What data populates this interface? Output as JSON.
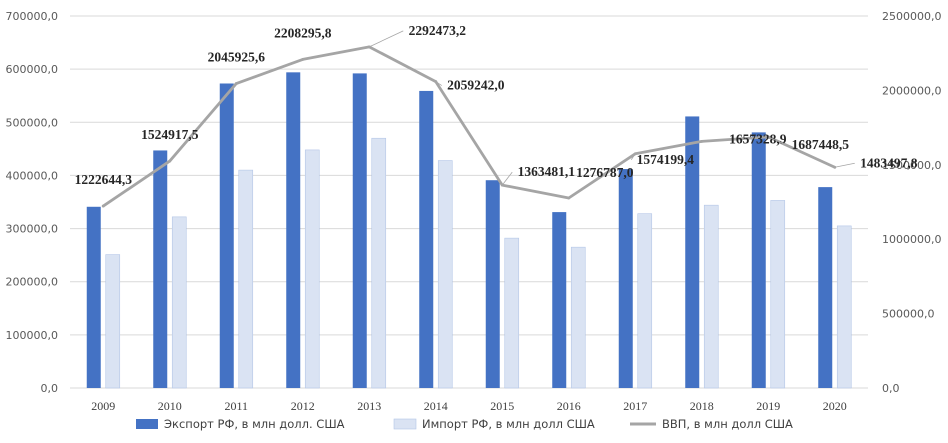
{
  "chart_data": {
    "type": "bar",
    "categories": [
      "2009",
      "2010",
      "2011",
      "2012",
      "2013",
      "2014",
      "2015",
      "2016",
      "2017",
      "2018",
      "2019",
      "2020"
    ],
    "series": [
      {
        "name": "Экспорт РФ, в млн  долл. США",
        "kind": "bar",
        "axis": "left",
        "color": "#4472c4",
        "values": [
          341000,
          447000,
          573000,
          594000,
          592000,
          559000,
          391000,
          331000,
          412000,
          511000,
          481000,
          378000
        ]
      },
      {
        "name": "Импорт РФ, в млн  долл США",
        "kind": "bar",
        "axis": "left",
        "color": "#dae3f3",
        "values": [
          251000,
          322000,
          410000,
          448000,
          470000,
          428000,
          282000,
          265000,
          328000,
          344000,
          353000,
          305000
        ]
      },
      {
        "name": "ВВП, в млн  долл США",
        "kind": "line",
        "axis": "right",
        "color": "#a5a5a5",
        "values": [
          1222644.3,
          1524917.5,
          2045925.6,
          2208295.8,
          2292473.2,
          2059242.0,
          1363481.1,
          1276787.0,
          1574199.4,
          1657328.9,
          1687448.5,
          1483497.8
        ],
        "data_labels": [
          "1222644,3",
          "1524917,5",
          "2045925,6",
          "2208295,8",
          "2292473,2",
          "2059242,0",
          "1363481,1",
          "1276787,0",
          "1574199,4",
          "1657328,9",
          "1687448,5",
          "1483497,8"
        ]
      }
    ],
    "y_left": {
      "range": [
        0,
        700000
      ],
      "ticks": [
        0,
        100000,
        200000,
        300000,
        400000,
        500000,
        600000,
        700000
      ],
      "tick_labels": [
        "0,0",
        "100000,0",
        "200000,0",
        "300000,0",
        "400000,0",
        "500000,0",
        "600000,0",
        "700000,0"
      ]
    },
    "y_right": {
      "range": [
        0,
        2500000
      ],
      "ticks": [
        0,
        500000,
        1000000,
        1500000,
        2000000,
        2500000
      ],
      "tick_labels": [
        "0,0",
        "500000,0",
        "1000000,0",
        "1500000,0",
        "2000000,0",
        "2500000,0"
      ]
    },
    "grid": true,
    "legend_position": "bottom"
  }
}
